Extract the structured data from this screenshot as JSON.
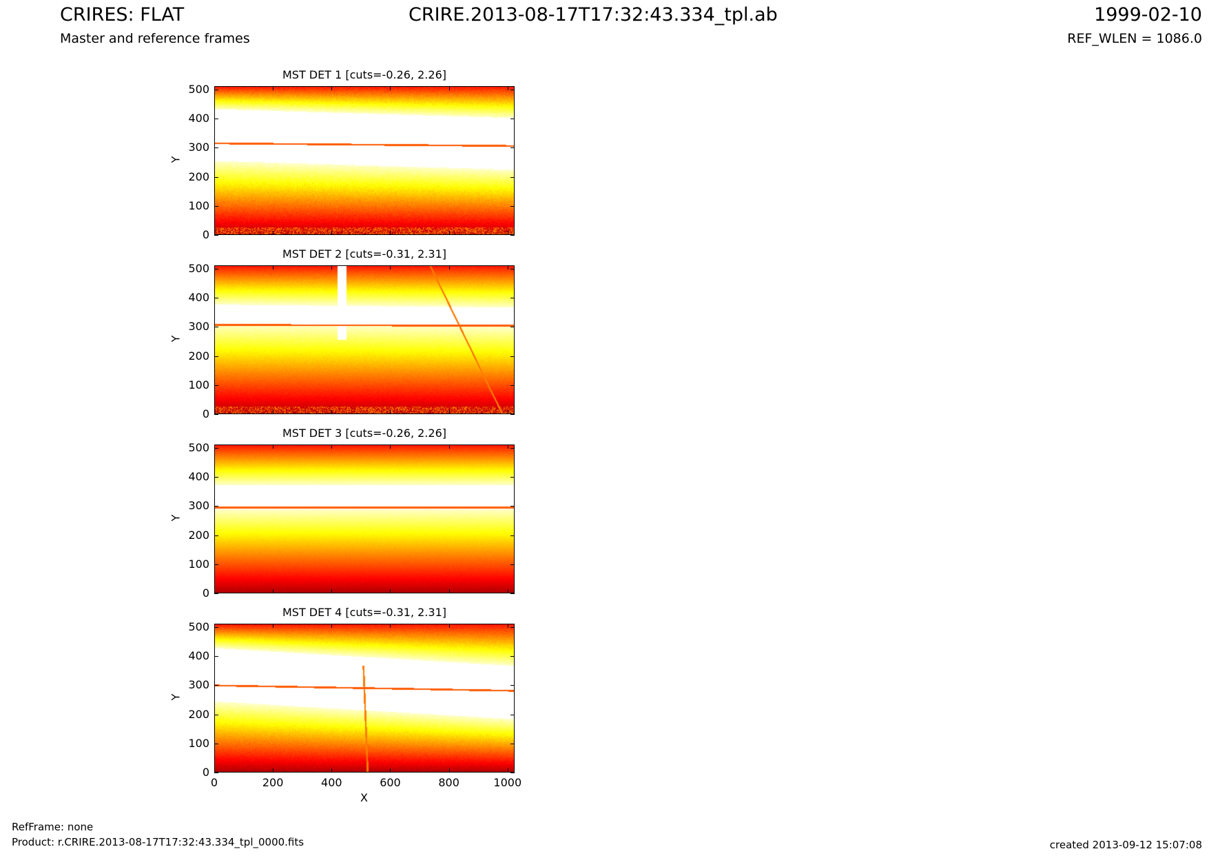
{
  "header": {
    "title": "CRIRES: FLAT",
    "subtitle": "Master and reference frames",
    "center_title": "CRIRE.2013-08-17T17:32:43.334_tpl.ab",
    "date": "1999-02-10",
    "ref_wlen": "REF_WLEN = 1086.0"
  },
  "footer": {
    "ref_frame": "RefFrame: none",
    "product": "Product: r.CRIRE.2013-08-17T17:32:43.334_tpl_0000.fits",
    "created": "created 2013-09-12 15:07:08"
  },
  "chart_data": [
    {
      "type": "heatmap",
      "title": "MST DET 1 [cuts=-0.26, 2.26]",
      "ylabel": "Y",
      "xlabel": "",
      "xlim": [
        0,
        1024
      ],
      "ylim": [
        0,
        512
      ],
      "cuts": [
        -0.26,
        2.26
      ],
      "y_ticks": [
        "0",
        "100",
        "200",
        "300",
        "400",
        "500"
      ],
      "x_ticks": [],
      "colormap": "hot"
    },
    {
      "type": "heatmap",
      "title": "MST DET 2 [cuts=-0.31, 2.31]",
      "ylabel": "Y",
      "xlabel": "",
      "xlim": [
        0,
        1024
      ],
      "ylim": [
        0,
        512
      ],
      "cuts": [
        -0.31,
        2.31
      ],
      "y_ticks": [
        "0",
        "100",
        "200",
        "300",
        "400",
        "500"
      ],
      "x_ticks": [],
      "colormap": "hot"
    },
    {
      "type": "heatmap",
      "title": "MST DET 3 [cuts=-0.26, 2.26]",
      "ylabel": "Y",
      "xlabel": "",
      "xlim": [
        0,
        1024
      ],
      "ylim": [
        0,
        512
      ],
      "cuts": [
        -0.26,
        2.26
      ],
      "y_ticks": [
        "0",
        "100",
        "200",
        "300",
        "400",
        "500"
      ],
      "x_ticks": [],
      "colormap": "hot"
    },
    {
      "type": "heatmap",
      "title": "MST DET 4 [cuts=-0.31, 2.31]",
      "ylabel": "Y",
      "xlabel": "X",
      "xlim": [
        0,
        1024
      ],
      "ylim": [
        0,
        512
      ],
      "cuts": [
        -0.31,
        2.31
      ],
      "y_ticks": [
        "0",
        "100",
        "200",
        "300",
        "400",
        "500"
      ],
      "x_ticks": [
        "0",
        "200",
        "400",
        "600",
        "800",
        "1000"
      ],
      "colormap": "hot"
    }
  ]
}
